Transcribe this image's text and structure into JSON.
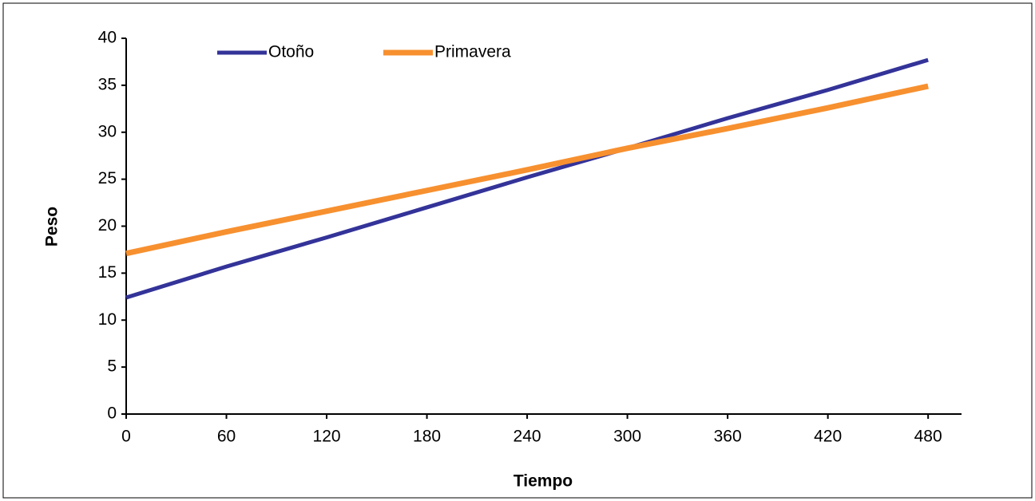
{
  "chart_data": {
    "type": "line",
    "x_label": "Tiempo",
    "y_label": "Peso",
    "x": [
      0,
      60,
      120,
      180,
      240,
      300,
      360,
      420,
      480
    ],
    "series": [
      {
        "name": "Otoño",
        "color": "#333399",
        "values": [
          12.4,
          15.7,
          18.8,
          22.0,
          25.2,
          28.3,
          31.5,
          34.5,
          37.7
        ]
      },
      {
        "name": "Primavera",
        "color": "#f7902f",
        "values": [
          17.1,
          19.4,
          21.6,
          23.8,
          26.0,
          28.3,
          30.4,
          32.6,
          34.9
        ]
      }
    ],
    "xlim": [
      0,
      500
    ],
    "ylim": [
      0,
      40
    ],
    "xticks": [
      0,
      60,
      120,
      180,
      240,
      300,
      360,
      420,
      480
    ],
    "yticks": [
      0,
      5,
      10,
      15,
      20,
      25,
      30,
      35,
      40
    ],
    "grid": false,
    "legend": "top"
  }
}
